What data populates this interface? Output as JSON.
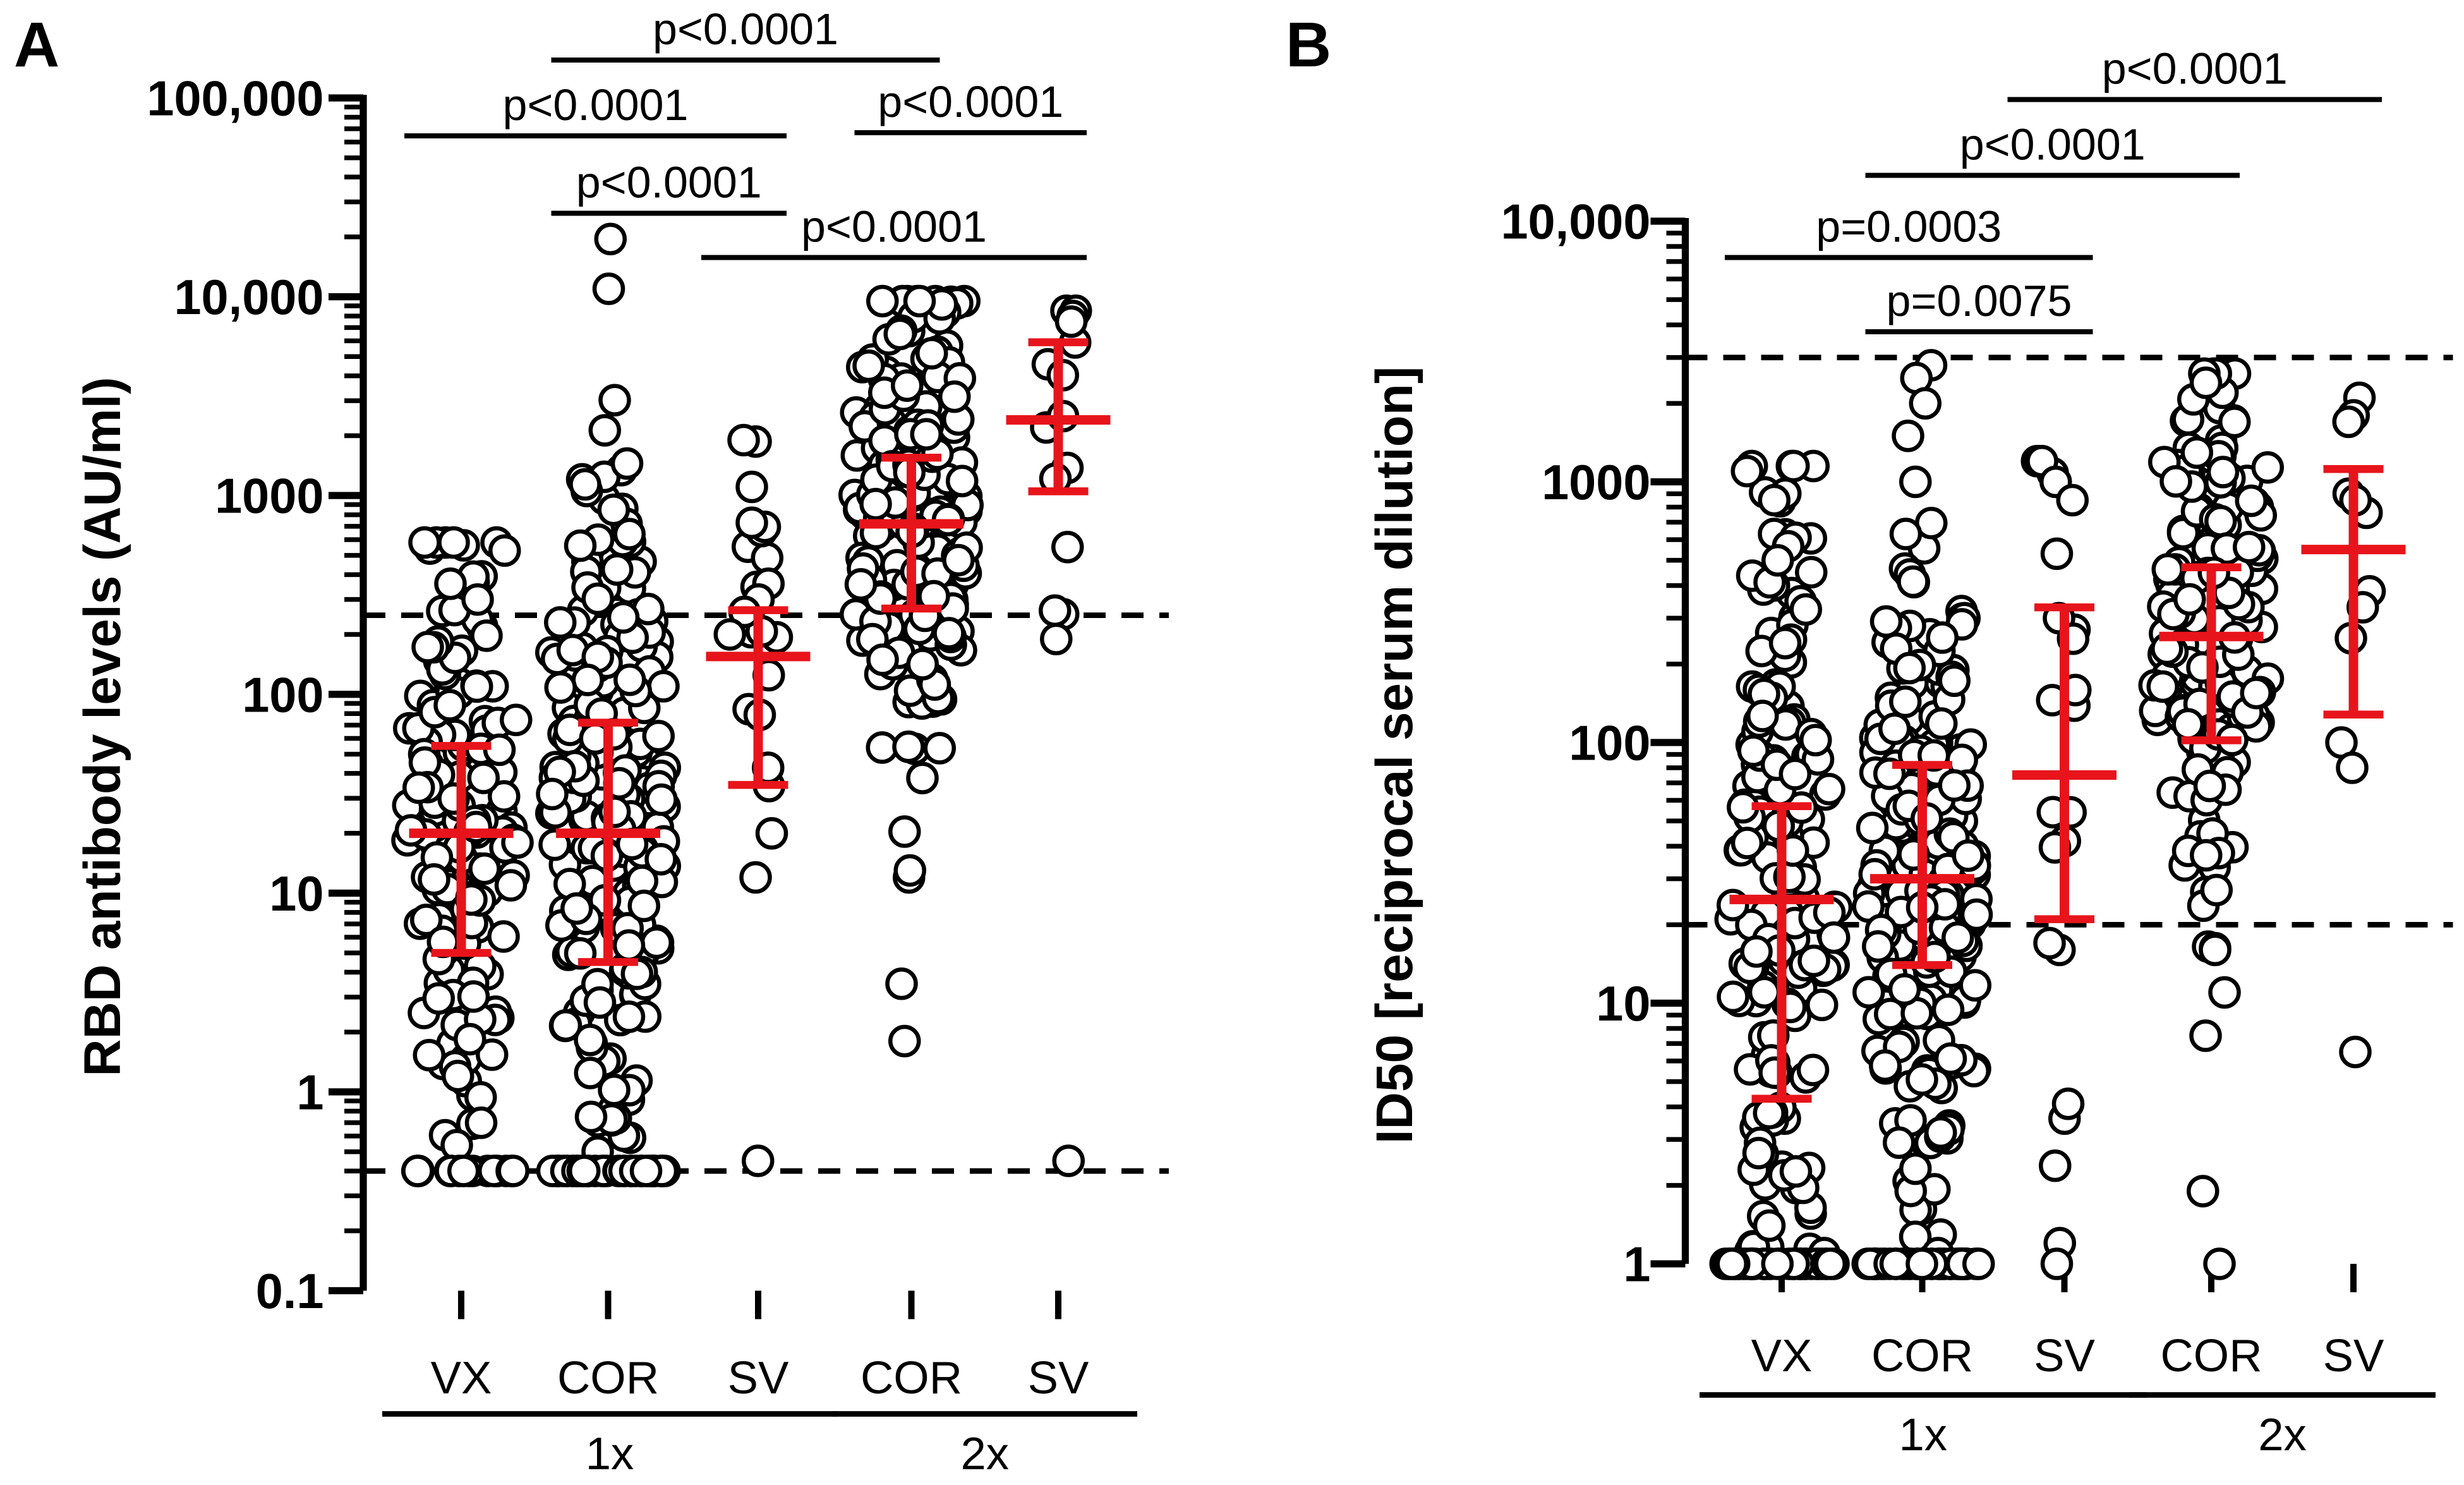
{
  "chart_data": [
    {
      "panel": "A",
      "type": "scatter",
      "ylabel": "RBD antibody levels (AU/ml)",
      "yscale": "log",
      "ylim": [
        0.1,
        100000
      ],
      "yticks": [
        {
          "v": 0.1,
          "label": "0.1"
        },
        {
          "v": 1,
          "label": "1"
        },
        {
          "v": 10,
          "label": "10"
        },
        {
          "v": 100,
          "label": "100"
        },
        {
          "v": 1000,
          "label": "1000"
        },
        {
          "v": 10000,
          "label": "10,000"
        },
        {
          "v": 100000,
          "label": "100,000"
        }
      ],
      "categories": [
        "VX",
        "COR",
        "SV",
        "COR",
        "SV"
      ],
      "groups": [
        {
          "label": "1x",
          "from": 0,
          "to": 2
        },
        {
          "label": "2x",
          "from": 3,
          "to": 4
        }
      ],
      "reference_lines": [
        250,
        0.4
      ],
      "series": [
        {
          "name": "VX",
          "n": 170,
          "median": 20,
          "iqr": [
            5,
            55
          ],
          "min": 0.4,
          "max": 580,
          "at_floor": 14,
          "extra": [
            580,
            300,
            0.7
          ]
        },
        {
          "name": "COR",
          "n": 290,
          "median": 20,
          "iqr": [
            4.5,
            72
          ],
          "min": 0.4,
          "max": 19500,
          "at_floor": 40,
          "extra": [
            19500,
            1450,
            640,
            600,
            560,
            0.5
          ]
        },
        {
          "name": "SV",
          "n": 24,
          "median": 155,
          "iqr": [
            35,
            265
          ],
          "min": 0.45,
          "max": 1900,
          "at_floor": 0,
          "extra": [
            1900,
            730,
            360,
            300,
            260,
            200,
            12,
            20,
            0.45
          ]
        },
        {
          "name": "COR",
          "n": 210,
          "median": 720,
          "iqr": [
            270,
            1550
          ],
          "min": 1.8,
          "max": 9500,
          "at_floor": 0,
          "extra": [
            9500,
            6500,
            5200,
            3.5,
            1.8,
            12,
            13
          ]
        },
        {
          "name": "SV",
          "n": 16,
          "median": 2400,
          "iqr": [
            1050,
            5900
          ],
          "min": 0.45,
          "max": 8500,
          "at_floor": 0,
          "extra": [
            8500,
            8000,
            7500,
            0.45,
            550
          ]
        }
      ],
      "significance": [
        {
          "label": "p<0.0001",
          "from": 1,
          "to": 3
        },
        {
          "label": "p<0.0001",
          "from": 0,
          "to": 2
        },
        {
          "label": "p<0.0001",
          "from": 3,
          "to": 4
        },
        {
          "label": "p<0.0001",
          "from": 1,
          "to": 2
        },
        {
          "label": "p<0.0001",
          "from": 2,
          "to": 4
        }
      ]
    },
    {
      "panel": "B",
      "type": "scatter",
      "ylabel": "ID50  [reciprocal serum dilution]",
      "yscale": "log",
      "ylim": [
        1,
        10000
      ],
      "yticks": [
        {
          "v": 1,
          "label": "1"
        },
        {
          "v": 10,
          "label": "10"
        },
        {
          "v": 100,
          "label": "100"
        },
        {
          "v": 1000,
          "label": "1000"
        },
        {
          "v": 10000,
          "label": "10,000"
        }
      ],
      "categories": [
        "VX",
        "COR",
        "SV",
        "COR",
        "SV"
      ],
      "groups": [
        {
          "label": "1x",
          "from": 0,
          "to": 2
        },
        {
          "label": "2x",
          "from": 3,
          "to": 4
        }
      ],
      "reference_lines": [
        3000,
        20
      ],
      "series": [
        {
          "name": "VX",
          "n": 220,
          "median": 25,
          "iqr": [
            4.3,
            57
          ],
          "min": 1,
          "max": 1150,
          "at_floor": 45,
          "extra": [
            1150,
            1100,
            900,
            850,
            500,
            450
          ]
        },
        {
          "name": "COR",
          "n": 280,
          "median": 30,
          "iqr": [
            14,
            82
          ],
          "min": 1,
          "max": 2800,
          "at_floor": 45,
          "extra": [
            2800,
            2500,
            2000,
            1500,
            1000,
            1.1
          ]
        },
        {
          "name": "SV",
          "n": 24,
          "median": 75,
          "iqr": [
            21,
            330
          ],
          "min": 1,
          "max": 1200,
          "at_floor": 0,
          "extra": [
            1200,
            1000,
            850,
            530,
            300,
            250,
            16,
            17,
            1.2,
            1
          ]
        },
        {
          "name": "COR",
          "n": 190,
          "median": 255,
          "iqr": [
            102,
            470
          ],
          "min": 1,
          "max": 2600,
          "at_floor": 0,
          "extra": [
            2600,
            2400,
            7.5,
            11,
            16,
            1.9,
            1
          ]
        },
        {
          "name": "SV",
          "n": 12,
          "median": 550,
          "iqr": [
            128,
            1120
          ],
          "min": 6.5,
          "max": 2100,
          "at_floor": 0,
          "extra": [
            2100,
            1800,
            1700,
            900,
            850,
            380,
            330,
            100,
            80,
            6.5
          ]
        }
      ],
      "significance": [
        {
          "label": "p<0.0001",
          "from": 2,
          "to": 4
        },
        {
          "label": "p<0.0001",
          "from": 1,
          "to": 3
        },
        {
          "label": "p=0.0003",
          "from": 0,
          "to": 2
        },
        {
          "label": "p=0.0075",
          "from": 1,
          "to": 2
        }
      ]
    }
  ]
}
